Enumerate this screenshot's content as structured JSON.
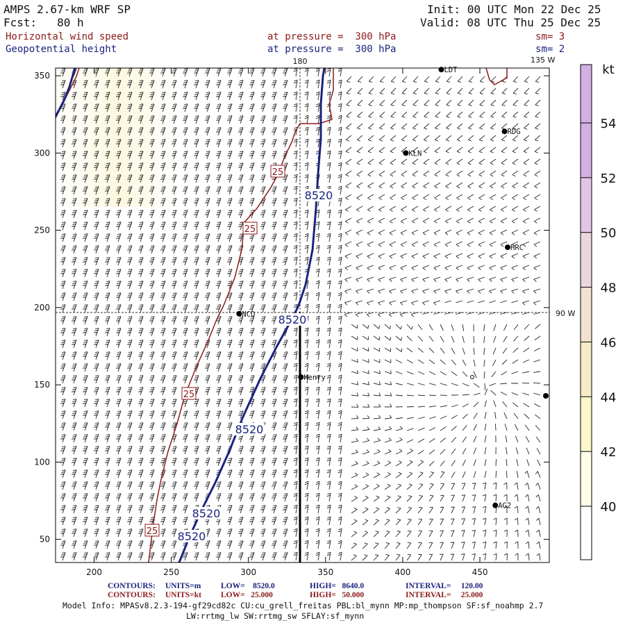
{
  "header": {
    "model": "AMPS 2.67-km WRF SP",
    "init": "Init: 00 UTC Mon 22 Dec 25",
    "fcst": "Fcst:   80 h",
    "valid": "Valid: 08 UTC Thu 25 Dec 25",
    "field1_name": "Horizontal wind speed",
    "field1_level": "at pressure =  300 hPa",
    "field1_sm": "sm= 3",
    "field2_name": "Geopotential height",
    "field2_level": "at pressure =  300 hPa",
    "field2_sm": "sm= 2"
  },
  "map_labels": {
    "lon_180": "180",
    "lon_135w": "135 W",
    "lon_90w": "90 W"
  },
  "chart_data": {
    "type": "contour-map",
    "xlim": [
      175,
      495
    ],
    "ylim": [
      35,
      355
    ],
    "xticks": [
      200,
      250,
      300,
      350,
      400,
      450
    ],
    "yticks": [
      50,
      100,
      150,
      200,
      250,
      300,
      350
    ],
    "color_scale": {
      "unit": "kt",
      "levels": [
        40,
        42,
        44,
        46,
        48,
        50,
        52,
        54
      ],
      "colors": [
        "#fffde8",
        "#fbf6cc",
        "#f7ecc5",
        "#f3e2cf",
        "#ecd6de",
        "#e2c6e6",
        "#d2b0e2"
      ]
    },
    "contour_labels": [
      "25",
      "25",
      "25",
      "25",
      "8520",
      "8520",
      "8520",
      "8520",
      "8520"
    ],
    "stations": [
      {
        "name": "LDT",
        "x": 425,
        "y": 354
      },
      {
        "name": "RDG",
        "x": 466,
        "y": 314
      },
      {
        "name": "KLN",
        "x": 402,
        "y": 300
      },
      {
        "name": "HRC",
        "x": 468,
        "y": 239
      },
      {
        "name": "NCO",
        "x": 294,
        "y": 196
      },
      {
        "name": "Henry",
        "x": 334,
        "y": 155
      },
      {
        "name": "AG2",
        "x": 460,
        "y": 72
      }
    ]
  },
  "footer": {
    "contours1_label": "CONTOURS:",
    "contours1_units": "UNITS=m",
    "contours1_low": "LOW=    8520.0",
    "contours1_high": "HIGH=   8640.0",
    "contours1_interval": "INTERVAL=     120.00",
    "contours2_label": "CONTOURS:",
    "contours2_units": "UNITS=kt",
    "contours2_low": "LOW=   25.000",
    "contours2_high": "HIGH=   50.000",
    "contours2_interval": "INTERVAL=     25.000",
    "model_info": "Model Info: MPASv8.2.3-194-gf29cd82c CU:cu_grell_freitas PBL:bl_mynn MP:mp_thompson SF:sf_noahmp 2.7",
    "model_info2": "LW:rrtmg_lw SW:rrtmg_sw SFLAY:sf_mynn"
  },
  "colors": {
    "red_contour": "#8b1a1a",
    "blue_contour": "#1a237e"
  }
}
